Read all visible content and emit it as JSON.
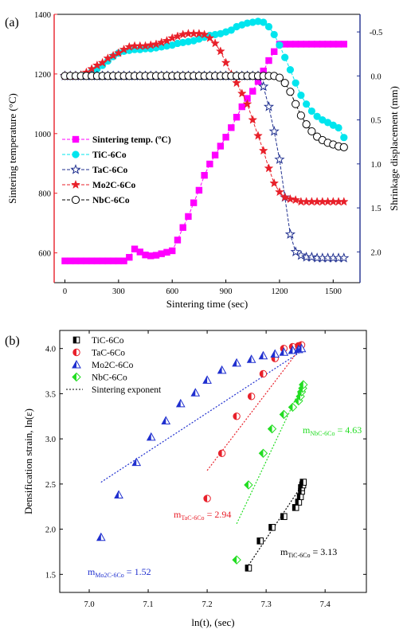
{
  "chart_data": [
    {
      "panel_label": "(a)",
      "type": "line",
      "xlabel": "Sintering time (sec)",
      "ylabel_left": "Sintering temperature (°C)",
      "ylabel_right": "Shrinkage displacement (mm)",
      "xlim": [
        -60,
        1650
      ],
      "ylim_left": [
        500,
        1400
      ],
      "ylim_right_reversed": [
        2.35,
        -0.7
      ],
      "xticks": [
        "0",
        "300",
        "600",
        "900",
        "1200",
        "1500"
      ],
      "yticks_left": [
        "600",
        "800",
        "1000",
        "1200",
        "1400"
      ],
      "yticks_right": [
        "-0.5",
        "0.0",
        "0.5",
        "1.0",
        "1.5",
        "2.0"
      ],
      "colors": {
        "left_axis": "#e8202a",
        "right_axis": "#1f2f8f",
        "temp": "#ff00ff",
        "tic": "#00e5ee",
        "tac": "#1f2f8f",
        "mo2c": "#e8202a",
        "nbc": "#000000"
      },
      "legend_position": "left-middle",
      "series": [
        {
          "name": "Sintering temp. (ºC)",
          "axis": "left",
          "marker": "square",
          "color": "#ff00ff",
          "x": [
            0,
            30,
            60,
            90,
            120,
            150,
            180,
            210,
            240,
            270,
            300,
            330,
            360,
            390,
            420,
            450,
            480,
            510,
            540,
            570,
            600,
            630,
            660,
            690,
            720,
            750,
            780,
            810,
            840,
            870,
            900,
            930,
            960,
            990,
            1020,
            1050,
            1080,
            1110,
            1140,
            1170,
            1200,
            1230,
            1260,
            1290,
            1320,
            1350,
            1380,
            1410,
            1440,
            1470,
            1500,
            1530,
            1560
          ],
          "y": [
            573,
            573,
            573,
            573,
            573,
            573,
            573,
            573,
            573,
            573,
            573,
            573,
            585,
            613,
            603,
            593,
            590,
            592,
            597,
            602,
            607,
            643,
            685,
            722,
            768,
            810,
            860,
            898,
            928,
            958,
            988,
            1020,
            1055,
            1090,
            1118,
            1142,
            1175,
            1210,
            1245,
            1275,
            1300,
            1300,
            1300,
            1300,
            1300,
            1300,
            1300,
            1300,
            1300,
            1300,
            1300,
            1300,
            1300
          ]
        },
        {
          "name": "TiC-6Co",
          "axis": "right",
          "marker": "circle",
          "color": "#00e5ee",
          "x": [
            0,
            30,
            60,
            90,
            120,
            150,
            180,
            210,
            240,
            270,
            300,
            330,
            360,
            390,
            420,
            450,
            480,
            510,
            540,
            570,
            600,
            630,
            660,
            690,
            720,
            750,
            780,
            810,
            840,
            870,
            900,
            930,
            960,
            990,
            1020,
            1050,
            1080,
            1110,
            1140,
            1170,
            1200,
            1230,
            1260,
            1290,
            1320,
            1350,
            1380,
            1410,
            1440,
            1470,
            1500,
            1530,
            1560
          ],
          "y": [
            0.0,
            0.0,
            0.0,
            0.0,
            -0.02,
            -0.05,
            -0.08,
            -0.12,
            -0.17,
            -0.22,
            -0.26,
            -0.28,
            -0.29,
            -0.3,
            -0.3,
            -0.31,
            -0.31,
            -0.32,
            -0.33,
            -0.34,
            -0.35,
            -0.37,
            -0.38,
            -0.39,
            -0.4,
            -0.42,
            -0.44,
            -0.46,
            -0.47,
            -0.48,
            -0.5,
            -0.52,
            -0.56,
            -0.58,
            -0.6,
            -0.61,
            -0.62,
            -0.61,
            -0.56,
            -0.47,
            -0.35,
            -0.21,
            -0.07,
            0.08,
            0.22,
            0.32,
            0.4,
            0.46,
            0.5,
            0.53,
            0.56,
            0.59,
            0.7
          ]
        },
        {
          "name": "TaC-6Co",
          "axis": "right",
          "marker": "star-open",
          "color": "#1f2f8f",
          "x": [
            0,
            30,
            60,
            90,
            120,
            150,
            180,
            210,
            240,
            270,
            300,
            330,
            360,
            390,
            420,
            450,
            480,
            510,
            540,
            570,
            600,
            630,
            660,
            690,
            720,
            750,
            780,
            810,
            840,
            870,
            900,
            930,
            960,
            990,
            1020,
            1050,
            1080,
            1110,
            1140,
            1170,
            1200,
            1230,
            1260,
            1290,
            1320,
            1350,
            1380,
            1410,
            1440,
            1470,
            1500,
            1530,
            1560
          ],
          "y": [
            0.0,
            0.0,
            0.0,
            0.0,
            0.0,
            0.0,
            0.0,
            0.0,
            0.0,
            0.0,
            0.0,
            0.0,
            0.0,
            0.0,
            0.0,
            0.0,
            0.0,
            0.0,
            0.0,
            0.0,
            0.0,
            0.0,
            0.0,
            0.0,
            0.0,
            0.0,
            0.0,
            0.0,
            0.0,
            0.0,
            0.0,
            0.0,
            0.0,
            0.0,
            0.0,
            0.0,
            0.0,
            0.12,
            0.35,
            0.63,
            0.95,
            1.38,
            1.8,
            2.0,
            2.04,
            2.06,
            2.06,
            2.07,
            2.07,
            2.07,
            2.07,
            2.07,
            2.07
          ]
        },
        {
          "name": "Mo2C-6Co",
          "axis": "right",
          "marker": "star",
          "color": "#e8202a",
          "x": [
            0,
            30,
            60,
            90,
            120,
            150,
            180,
            210,
            240,
            270,
            300,
            330,
            360,
            390,
            420,
            450,
            480,
            510,
            540,
            570,
            600,
            630,
            660,
            690,
            720,
            750,
            780,
            810,
            840,
            870,
            900,
            930,
            960,
            990,
            1020,
            1050,
            1080,
            1110,
            1140,
            1170,
            1200,
            1230,
            1260,
            1290,
            1320,
            1350,
            1380,
            1410,
            1440,
            1470,
            1500,
            1530,
            1560
          ],
          "y": [
            0.0,
            0.0,
            0.0,
            -0.01,
            -0.04,
            -0.08,
            -0.12,
            -0.15,
            -0.2,
            -0.23,
            -0.26,
            -0.3,
            -0.33,
            -0.34,
            -0.34,
            -0.34,
            -0.35,
            -0.36,
            -0.38,
            -0.4,
            -0.43,
            -0.45,
            -0.47,
            -0.48,
            -0.48,
            -0.48,
            -0.47,
            -0.43,
            -0.37,
            -0.28,
            -0.15,
            -0.02,
            0.08,
            0.2,
            0.32,
            0.5,
            0.68,
            0.85,
            1.05,
            1.22,
            1.32,
            1.38,
            1.4,
            1.41,
            1.43,
            1.43,
            1.43,
            1.43,
            1.43,
            1.43,
            1.43,
            1.43,
            1.43
          ]
        },
        {
          "name": "NbC-6Co",
          "axis": "right",
          "marker": "circle-open",
          "color": "#000000",
          "x": [
            0,
            30,
            60,
            90,
            120,
            150,
            180,
            210,
            240,
            270,
            300,
            330,
            360,
            390,
            420,
            450,
            480,
            510,
            540,
            570,
            600,
            630,
            660,
            690,
            720,
            750,
            780,
            810,
            840,
            870,
            900,
            930,
            960,
            990,
            1020,
            1050,
            1080,
            1110,
            1140,
            1170,
            1200,
            1230,
            1260,
            1290,
            1320,
            1350,
            1380,
            1410,
            1440,
            1470,
            1500,
            1530,
            1560
          ],
          "y": [
            0.0,
            0.0,
            0.0,
            0.0,
            0.0,
            0.0,
            0.0,
            0.0,
            0.0,
            0.0,
            0.0,
            0.0,
            0.0,
            0.0,
            0.0,
            0.0,
            0.0,
            0.0,
            0.0,
            0.0,
            0.0,
            0.0,
            0.0,
            0.0,
            0.0,
            0.0,
            0.0,
            0.0,
            0.0,
            0.0,
            0.0,
            0.0,
            0.0,
            0.0,
            0.0,
            0.0,
            0.0,
            0.0,
            0.0,
            0.0,
            0.02,
            0.08,
            0.18,
            0.32,
            0.45,
            0.55,
            0.63,
            0.69,
            0.73,
            0.76,
            0.78,
            0.8,
            0.81
          ]
        }
      ]
    },
    {
      "panel_label": "(b)",
      "type": "scatter",
      "xlabel": "ln(t), (sec)",
      "ylabel": "Densification strain, ln(ε)",
      "xlim": [
        6.95,
        7.47
      ],
      "ylim": [
        1.3,
        4.2
      ],
      "xticks": [
        "7.0",
        "7.1",
        "7.2",
        "7.3",
        "7.4"
      ],
      "yticks": [
        "1.5",
        "2.0",
        "2.5",
        "3.0",
        "3.5",
        "4.0"
      ],
      "legend_position": "top-left",
      "series": [
        {
          "name": "TiC-6Co",
          "marker": "square-half",
          "color": "#000000",
          "x": [
            7.27,
            7.29,
            7.31,
            7.33,
            7.35,
            7.355,
            7.358,
            7.36,
            7.36,
            7.362,
            7.363
          ],
          "y": [
            1.57,
            1.87,
            2.02,
            2.14,
            2.24,
            2.3,
            2.36,
            2.42,
            2.46,
            2.49,
            2.52
          ]
        },
        {
          "name": "TaC-6Co",
          "marker": "circle-half",
          "color": "#e8202a",
          "x": [
            7.2,
            7.225,
            7.25,
            7.275,
            7.295,
            7.315,
            7.33,
            7.345,
            7.355,
            7.36
          ],
          "y": [
            2.34,
            2.84,
            3.25,
            3.47,
            3.72,
            3.89,
            4.0,
            4.02,
            4.03,
            4.04
          ]
        },
        {
          "name": "Mo2C-6Co",
          "marker": "triangle-half",
          "color": "#1f2fcf",
          "x": [
            7.02,
            7.05,
            7.08,
            7.105,
            7.13,
            7.155,
            7.18,
            7.2,
            7.225,
            7.25,
            7.275,
            7.295,
            7.315,
            7.33,
            7.345,
            7.355,
            7.36
          ],
          "y": [
            1.91,
            2.38,
            2.74,
            3.02,
            3.2,
            3.39,
            3.51,
            3.65,
            3.76,
            3.84,
            3.88,
            3.92,
            3.94,
            3.96,
            3.98,
            3.99,
            4.0
          ]
        },
        {
          "name": "NbC-6Co",
          "marker": "diamond-half",
          "color": "#22dd22",
          "x": [
            7.25,
            7.27,
            7.295,
            7.31,
            7.33,
            7.345,
            7.355,
            7.358,
            7.36,
            7.362,
            7.363
          ],
          "y": [
            1.66,
            2.49,
            2.84,
            3.11,
            3.27,
            3.35,
            3.42,
            3.47,
            3.52,
            3.56,
            3.6
          ]
        },
        {
          "name": "Sintering exponent",
          "marker": "dotted-line",
          "color": "#000000",
          "fits": [
            {
              "for": "Mo2C-6Co",
              "color": "#1f2fcf",
              "x": [
                7.02,
                7.36
              ],
              "y": [
                2.52,
                3.97
              ]
            },
            {
              "for": "TaC-6Co",
              "color": "#e8202a",
              "x": [
                7.2,
                7.36
              ],
              "y": [
                2.65,
                4.02
              ]
            },
            {
              "for": "NbC-6Co",
              "color": "#22dd22",
              "x": [
                7.25,
                7.36
              ],
              "y": [
                2.06,
                3.58
              ]
            },
            {
              "for": "TiC-6Co",
              "color": "#000000",
              "x": [
                7.27,
                7.36
              ],
              "y": [
                1.6,
                2.48
              ]
            }
          ]
        }
      ],
      "annotations": [
        {
          "main": "m",
          "sub": "Mo2C-6Co",
          "rest": " = 1.52",
          "color": "#1f2fcf"
        },
        {
          "main": "m",
          "sub": "TaC-6Co",
          "rest": " = 2.94",
          "color": "#e8202a"
        },
        {
          "main": "m",
          "sub": "NbC-6Co",
          "rest": " = 4.63",
          "color": "#22dd22"
        },
        {
          "main": "m",
          "sub": "TiC-6Co",
          "rest": " = 3.13",
          "color": "#000000"
        }
      ]
    }
  ]
}
